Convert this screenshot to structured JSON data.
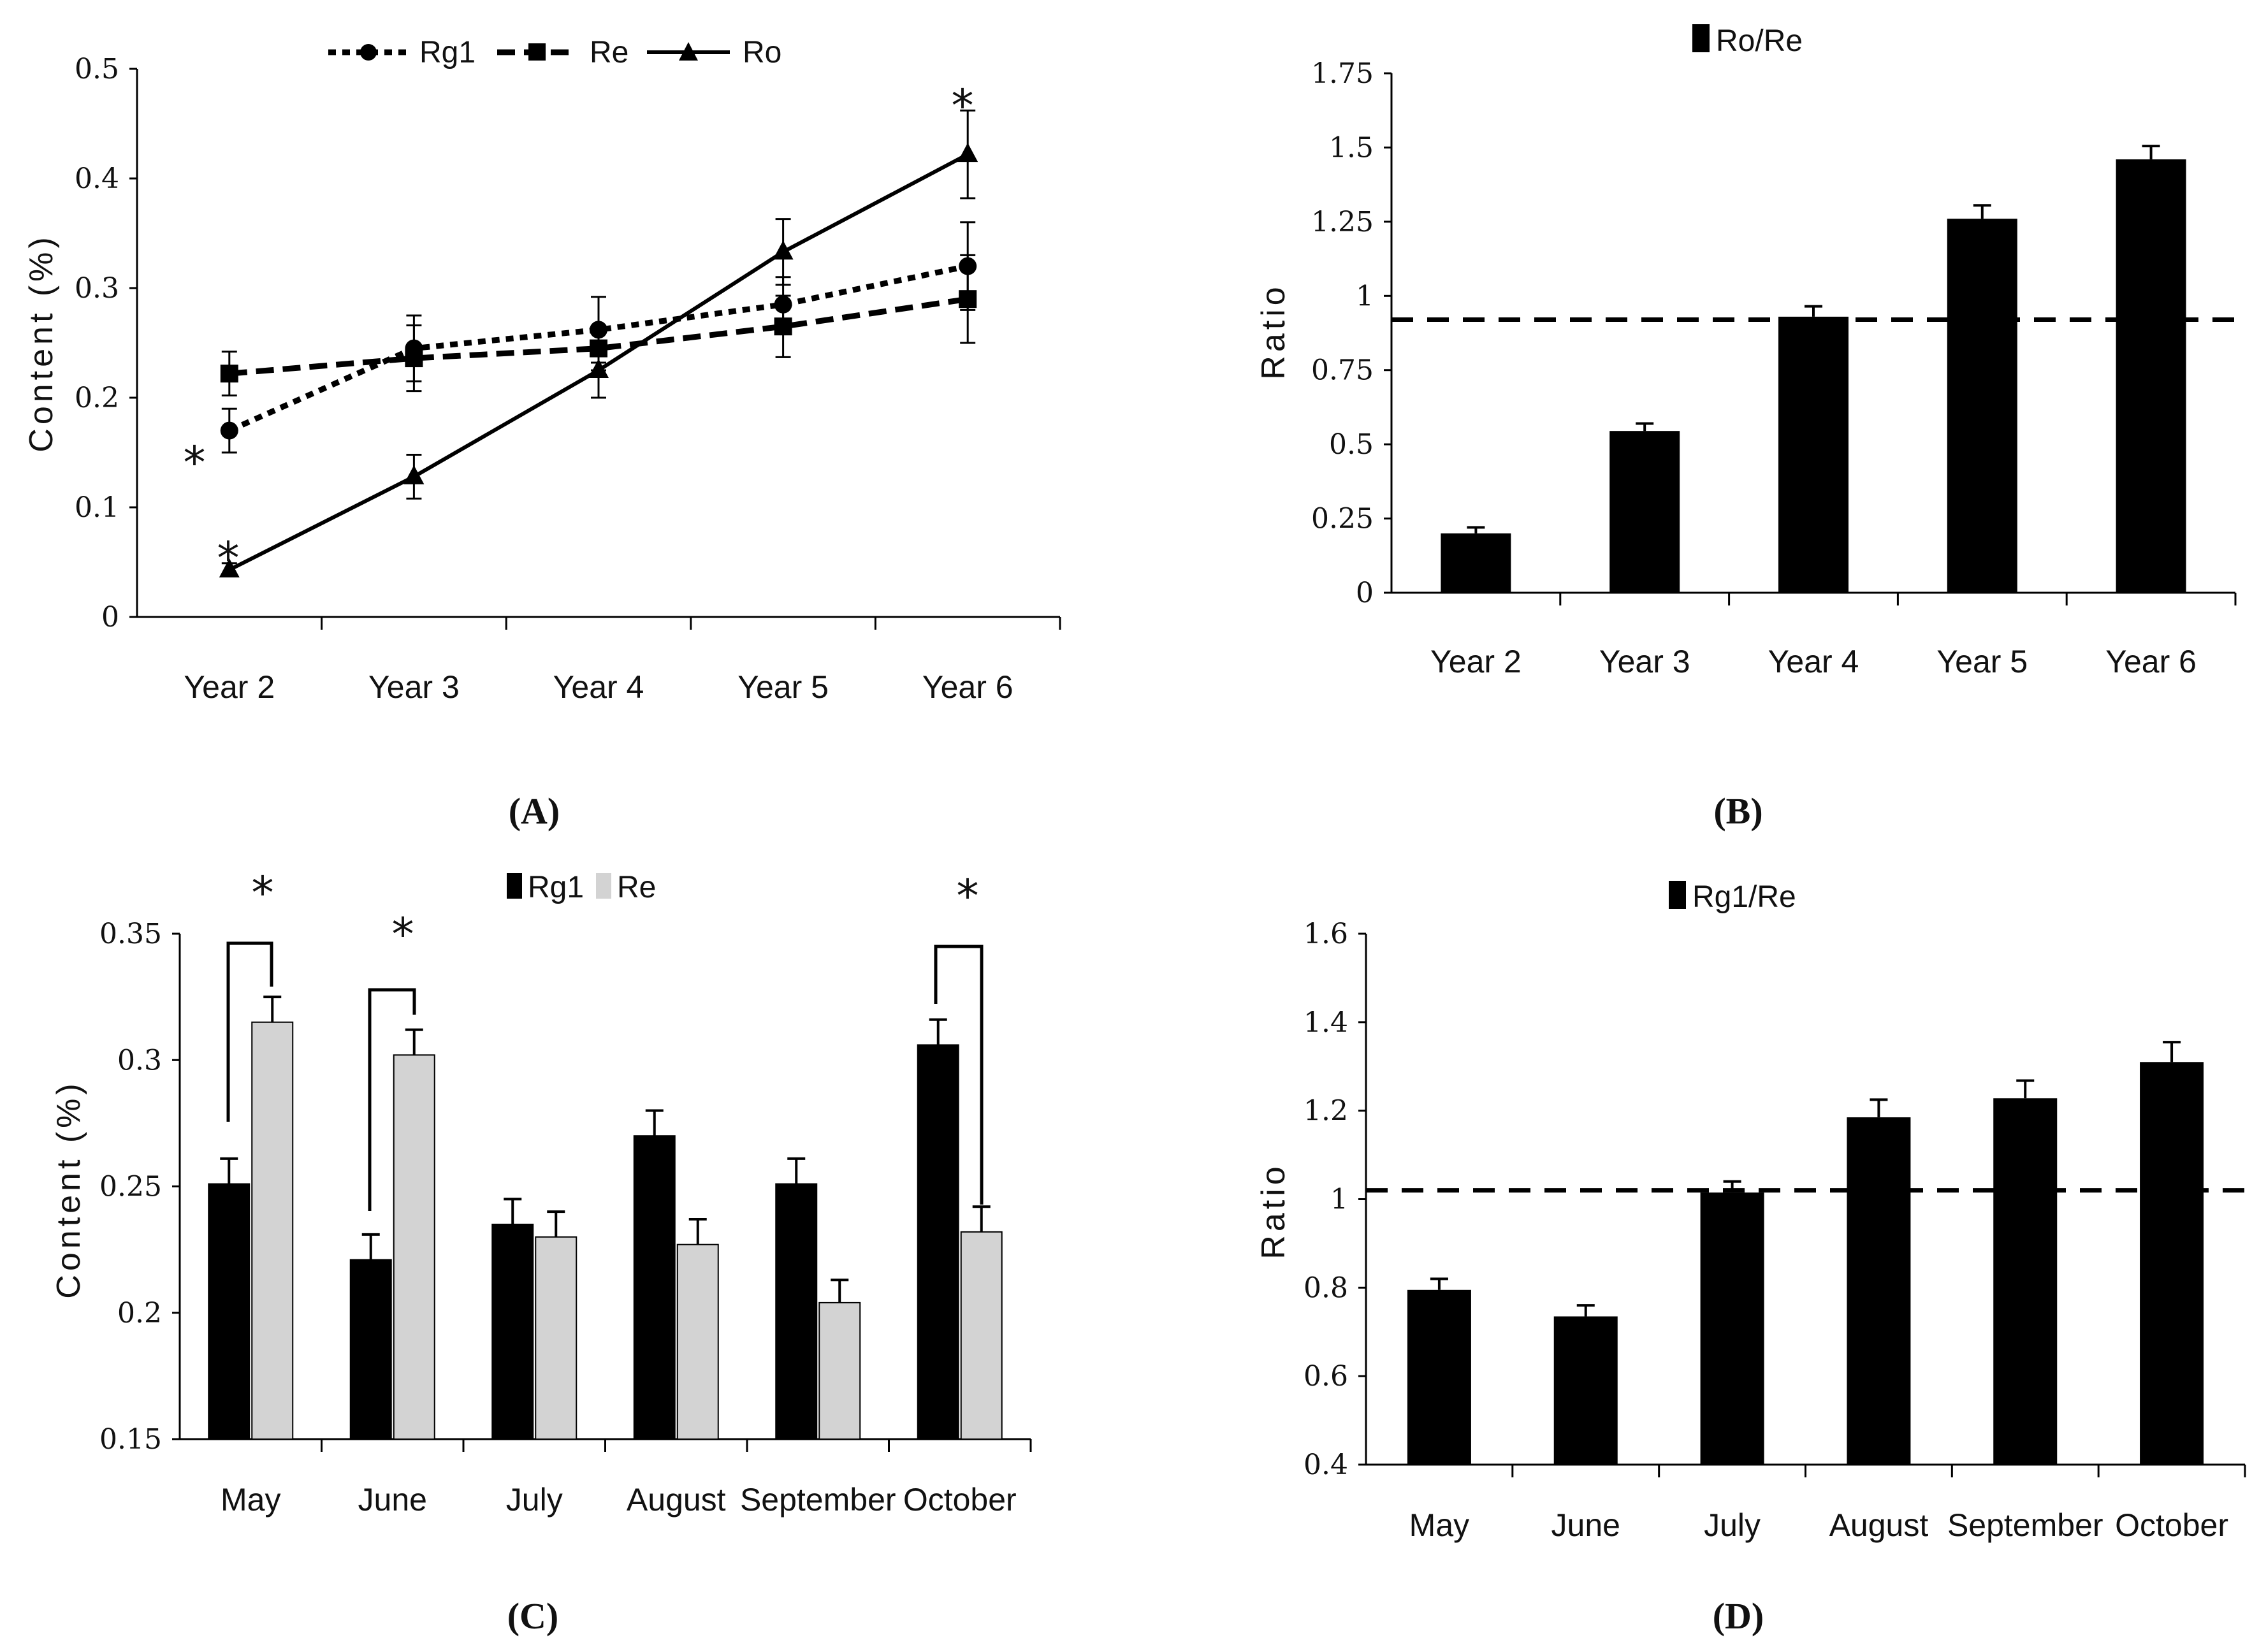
{
  "chart_data": [
    {
      "id": "A",
      "type": "line",
      "panel_label": "(A)",
      "ylabel": "Content (%)",
      "categories": [
        "Year 2",
        "Year 3",
        "Year 4",
        "Year 5",
        "Year 6"
      ],
      "ylim": [
        0,
        0.5
      ],
      "yticks": [
        "0",
        "0.1",
        "0.2",
        "0.3",
        "0.4",
        "0.5"
      ],
      "series": [
        {
          "name": "Rg1",
          "values": [
            0.17,
            0.245,
            0.262,
            0.285,
            0.32
          ],
          "errors": [
            0.02,
            0.03,
            0.03,
            0.025,
            0.04
          ]
        },
        {
          "name": "Re",
          "values": [
            0.222,
            0.236,
            0.245,
            0.265,
            0.29
          ],
          "errors": [
            0.02,
            0.03,
            0.02,
            0.028,
            0.04
          ]
        },
        {
          "name": "Ro",
          "values": [
            0.043,
            0.128,
            0.225,
            0.333,
            0.422
          ],
          "errors": [
            0.006,
            0.02,
            0.025,
            0.03,
            0.04
          ]
        }
      ],
      "significance": [
        "*",
        "*",
        "*"
      ]
    },
    {
      "id": "B",
      "type": "bar",
      "panel_label": "(B)",
      "ylabel": "Ratio",
      "legend": "Ro/Re",
      "categories": [
        "Year 2",
        "Year 3",
        "Year 4",
        "Year 5",
        "Year 6"
      ],
      "values": [
        0.2,
        0.545,
        0.93,
        1.26,
        1.46
      ],
      "errors": [
        0.02,
        0.025,
        0.035,
        0.045,
        0.045
      ],
      "ylim": [
        0,
        1.75
      ],
      "yticks": [
        "0",
        "0.25",
        "0.5",
        "0.75",
        "1",
        "1.25",
        "1.5",
        "1.75"
      ],
      "reference_line": 0.92
    },
    {
      "id": "C",
      "type": "bar",
      "panel_label": "(C)",
      "ylabel": "Content (%)",
      "categories": [
        "May",
        "June",
        "July",
        "August",
        "September",
        "October"
      ],
      "series": [
        {
          "name": "Rg1",
          "color": "#000000",
          "values": [
            0.251,
            0.221,
            0.235,
            0.27,
            0.251,
            0.306
          ],
          "errors": [
            0.01,
            0.01,
            0.01,
            0.01,
            0.01,
            0.01
          ]
        },
        {
          "name": "Re",
          "color": "#d3d3d3",
          "values": [
            0.315,
            0.302,
            0.23,
            0.227,
            0.204,
            0.232
          ],
          "errors": [
            0.01,
            0.01,
            0.01,
            0.01,
            0.009,
            0.01
          ]
        }
      ],
      "ylim": [
        0.15,
        0.35
      ],
      "yticks": [
        "0.15",
        "0.2",
        "0.25",
        "0.3",
        "0.35"
      ],
      "significance": [
        "*",
        "*",
        "*"
      ]
    },
    {
      "id": "D",
      "type": "bar",
      "panel_label": "(D)",
      "ylabel": "Ratio",
      "legend": "Rg1/Re",
      "categories": [
        "May",
        "June",
        "July",
        "August",
        "September",
        "October"
      ],
      "values": [
        0.795,
        0.735,
        1.015,
        1.185,
        1.228,
        1.31
      ],
      "errors": [
        0.025,
        0.025,
        0.025,
        0.04,
        0.04,
        0.045
      ],
      "ylim": [
        0.4,
        1.6
      ],
      "yticks": [
        "0.4",
        "0.6",
        "0.8",
        "1",
        "1.2",
        "1.4",
        "1.6"
      ],
      "reference_line": 1.02
    }
  ]
}
